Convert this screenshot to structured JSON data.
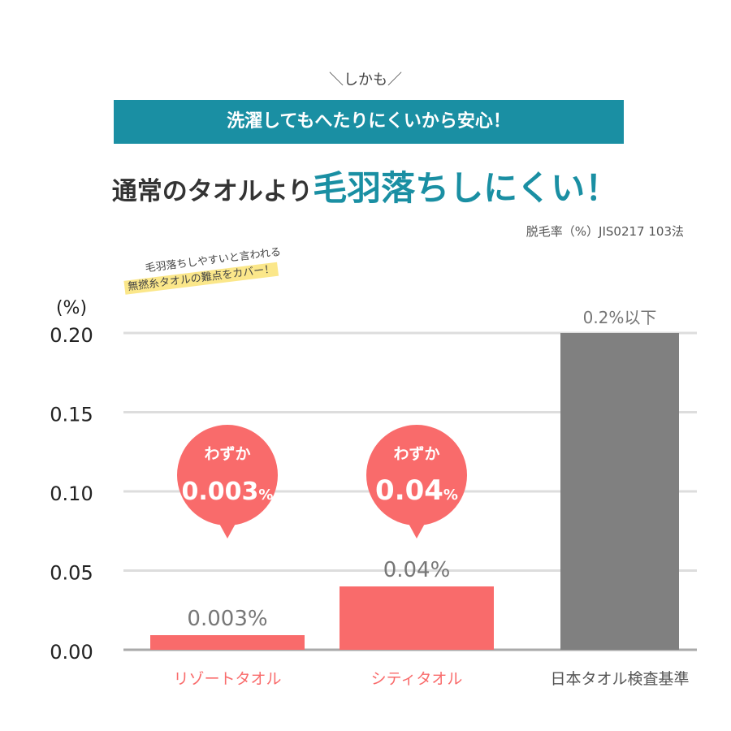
{
  "lead": "＼しかも／",
  "banner": "洗濯してもへたりにくいから安心！",
  "headline": {
    "part1": "通常のタオルより",
    "part2": "毛羽落ちしにくい！"
  },
  "method": "脱毛率（%）JIS0217 103法",
  "note": {
    "line1": "毛羽落ちしやすいと言われる",
    "line2": "無撚糸タオルの難点をカバー！"
  },
  "colors": {
    "accent": "#1a8fa3",
    "coral": "#f96b6b",
    "gray": "#808080",
    "highlight": "#fbe78a"
  },
  "chart_data": {
    "type": "bar",
    "ylabel": "(%)",
    "ylim": [
      0,
      0.2
    ],
    "yticks": [
      "0.00",
      "0.05",
      "0.10",
      "0.15",
      "0.20"
    ],
    "grid": true,
    "categories": [
      "リゾートタオル",
      "シティタオル",
      "日本タオル検査基準"
    ],
    "values": [
      0.003,
      0.04,
      0.2
    ],
    "data_labels": [
      "0.003%",
      "0.04%",
      "0.2%以下"
    ],
    "bubbles": [
      {
        "top": "わずか",
        "value": "0.003",
        "unit": "%"
      },
      {
        "top": "わずか",
        "value": "0.04",
        "unit": "%"
      }
    ]
  }
}
